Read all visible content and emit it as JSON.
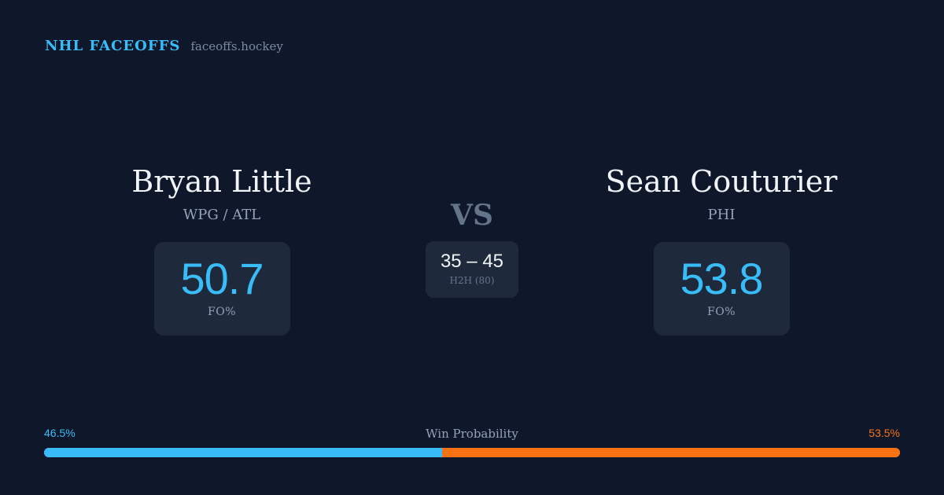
{
  "brand": {
    "name": "NHL FACEOFFS",
    "domain": "faceoffs.hockey"
  },
  "left_player": {
    "name": "Bryan Little",
    "team": "WPG / ATL",
    "fo_pct": "50.7",
    "fo_label": "FO%"
  },
  "right_player": {
    "name": "Sean Couturier",
    "team": "PHI",
    "fo_pct": "53.8",
    "fo_label": "FO%"
  },
  "versus": {
    "label": "VS",
    "h2h_score": "35 – 45",
    "h2h_label": "H2H (80)"
  },
  "win_probability": {
    "title": "Win Probability",
    "left_label": "46.5%",
    "right_label": "53.5%",
    "left_fraction": 0.465,
    "right_fraction": 0.535
  },
  "colors": {
    "background": "#0f172a",
    "card": "#1e293b",
    "accent_left": "#38bdf8",
    "accent_right": "#f97316",
    "muted": "#94a3b8"
  }
}
